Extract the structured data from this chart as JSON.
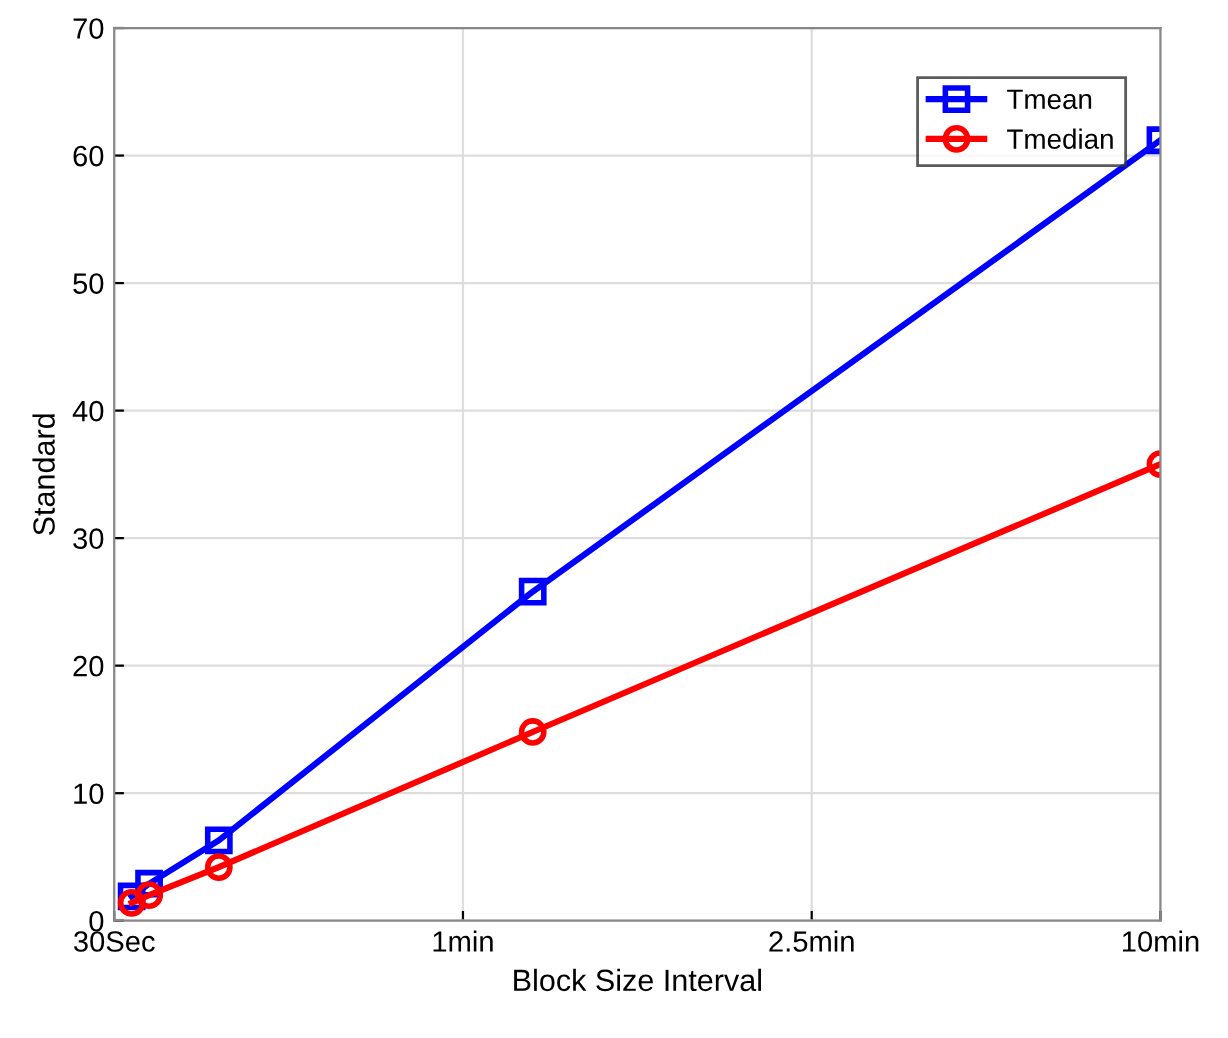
{
  "chart_data": {
    "type": "line",
    "xlabel": "Block Size Interval",
    "ylabel": "Standard",
    "categories": [
      "30Sec",
      null,
      null,
      null,
      null,
      null,
      null,
      null,
      null,
      null,
      null,
      null,
      null,
      null,
      null,
      null,
      null,
      null,
      null,
      null,
      "1min",
      null,
      null,
      null,
      null,
      null,
      null,
      null,
      null,
      null,
      null,
      null,
      null,
      null,
      null,
      null,
      null,
      null,
      null,
      null,
      "2.5min",
      null,
      null,
      null,
      null,
      null,
      null,
      null,
      null,
      null,
      null,
      null,
      null,
      null,
      null,
      null,
      null,
      null,
      null,
      null,
      "10min"
    ],
    "ylim": [
      0,
      70
    ],
    "yticks": [
      0,
      10,
      20,
      30,
      40,
      50,
      60,
      70
    ],
    "grid": true,
    "legend": "top right",
    "series": [
      {
        "name": "Tmean",
        "color": "#0000ff",
        "marker": "square",
        "values": [
          null,
          1.9,
          2.9,
          null,
          null,
          null,
          6.3,
          null,
          null,
          null,
          null,
          null,
          null,
          null,
          null,
          null,
          null,
          null,
          null,
          null,
          null,
          null,
          null,
          null,
          25.8,
          null,
          null,
          null,
          null,
          null,
          null,
          null,
          null,
          null,
          null,
          null,
          null,
          null,
          null,
          null,
          null,
          null,
          null,
          null,
          null,
          null,
          null,
          null,
          null,
          null,
          null,
          null,
          null,
          null,
          null,
          null,
          null,
          null,
          null,
          null,
          61.2
        ]
      },
      {
        "name": "Tmedian",
        "color": "#ff0000",
        "marker": "circle",
        "values": [
          null,
          1.4,
          2.0,
          null,
          null,
          null,
          4.2,
          null,
          null,
          null,
          null,
          null,
          null,
          null,
          null,
          null,
          null,
          null,
          null,
          null,
          null,
          null,
          null,
          null,
          14.8,
          null,
          null,
          null,
          null,
          null,
          null,
          null,
          null,
          null,
          null,
          null,
          null,
          null,
          null,
          null,
          null,
          null,
          null,
          null,
          null,
          null,
          null,
          null,
          null,
          null,
          null,
          null,
          null,
          null,
          null,
          null,
          null,
          null,
          null,
          null,
          35.8
        ]
      }
    ]
  }
}
